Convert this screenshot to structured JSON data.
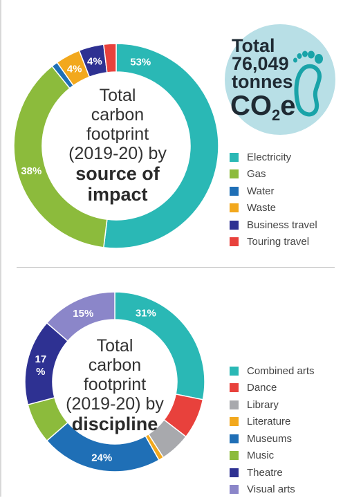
{
  "chart_data": [
    {
      "type": "pie",
      "donut": true,
      "title": {
        "line1": "Total",
        "line2": "carbon",
        "line3": "footprint",
        "line4": "(2019-20) by",
        "bold1": "source of",
        "bold2": "impact"
      },
      "slices": [
        {
          "name": "Electricity",
          "value": 53,
          "color": "#2ab8b5",
          "label": "53%"
        },
        {
          "name": "Gas",
          "value": 38,
          "color": "#8cbb3c",
          "label": "38%"
        },
        {
          "name": "Water",
          "value": 1,
          "color": "#1f6fb6",
          "label": ""
        },
        {
          "name": "Waste",
          "value": 4,
          "color": "#f2a81d",
          "label": "4%"
        },
        {
          "name": "Business travel",
          "value": 4,
          "color": "#2e3192",
          "label": "4%"
        },
        {
          "name": "Touring travel",
          "value": 2,
          "color": "#e8413c",
          "label": ""
        }
      ]
    },
    {
      "type": "pie",
      "donut": true,
      "title": {
        "line1": "Total",
        "line2": "carbon",
        "line3": "footprint",
        "line4": "(2019-20) by",
        "bold1": "discipline"
      },
      "slices": [
        {
          "name": "Combined arts",
          "value": 31,
          "color": "#2ab8b5",
          "label": "31%"
        },
        {
          "name": "Dance",
          "value": 8,
          "color": "#e8413c",
          "label": ""
        },
        {
          "name": "Library",
          "value": 6,
          "color": "#a8a9ad",
          "label": ""
        },
        {
          "name": "Literature",
          "value": 1,
          "color": "#f2a81d",
          "label": ""
        },
        {
          "name": "Museums",
          "value": 24,
          "color": "#1f6fb6",
          "label": "24%"
        },
        {
          "name": "Music",
          "value": 8,
          "color": "#8cbb3c",
          "label": ""
        },
        {
          "name": "Theatre",
          "value": 17,
          "color": "#2e3192",
          "label": "17\n%"
        },
        {
          "name": "Visual arts",
          "value": 15,
          "color": "#8b86c9",
          "label": "15%"
        }
      ]
    }
  ],
  "total_badge": {
    "line1": "Total",
    "line2": "76,049",
    "line3": "tonnes",
    "unit_main": "CO",
    "unit_sub": "2",
    "unit_tail": "e",
    "color": "#b8dfe6",
    "icon": "footprint-icon"
  }
}
